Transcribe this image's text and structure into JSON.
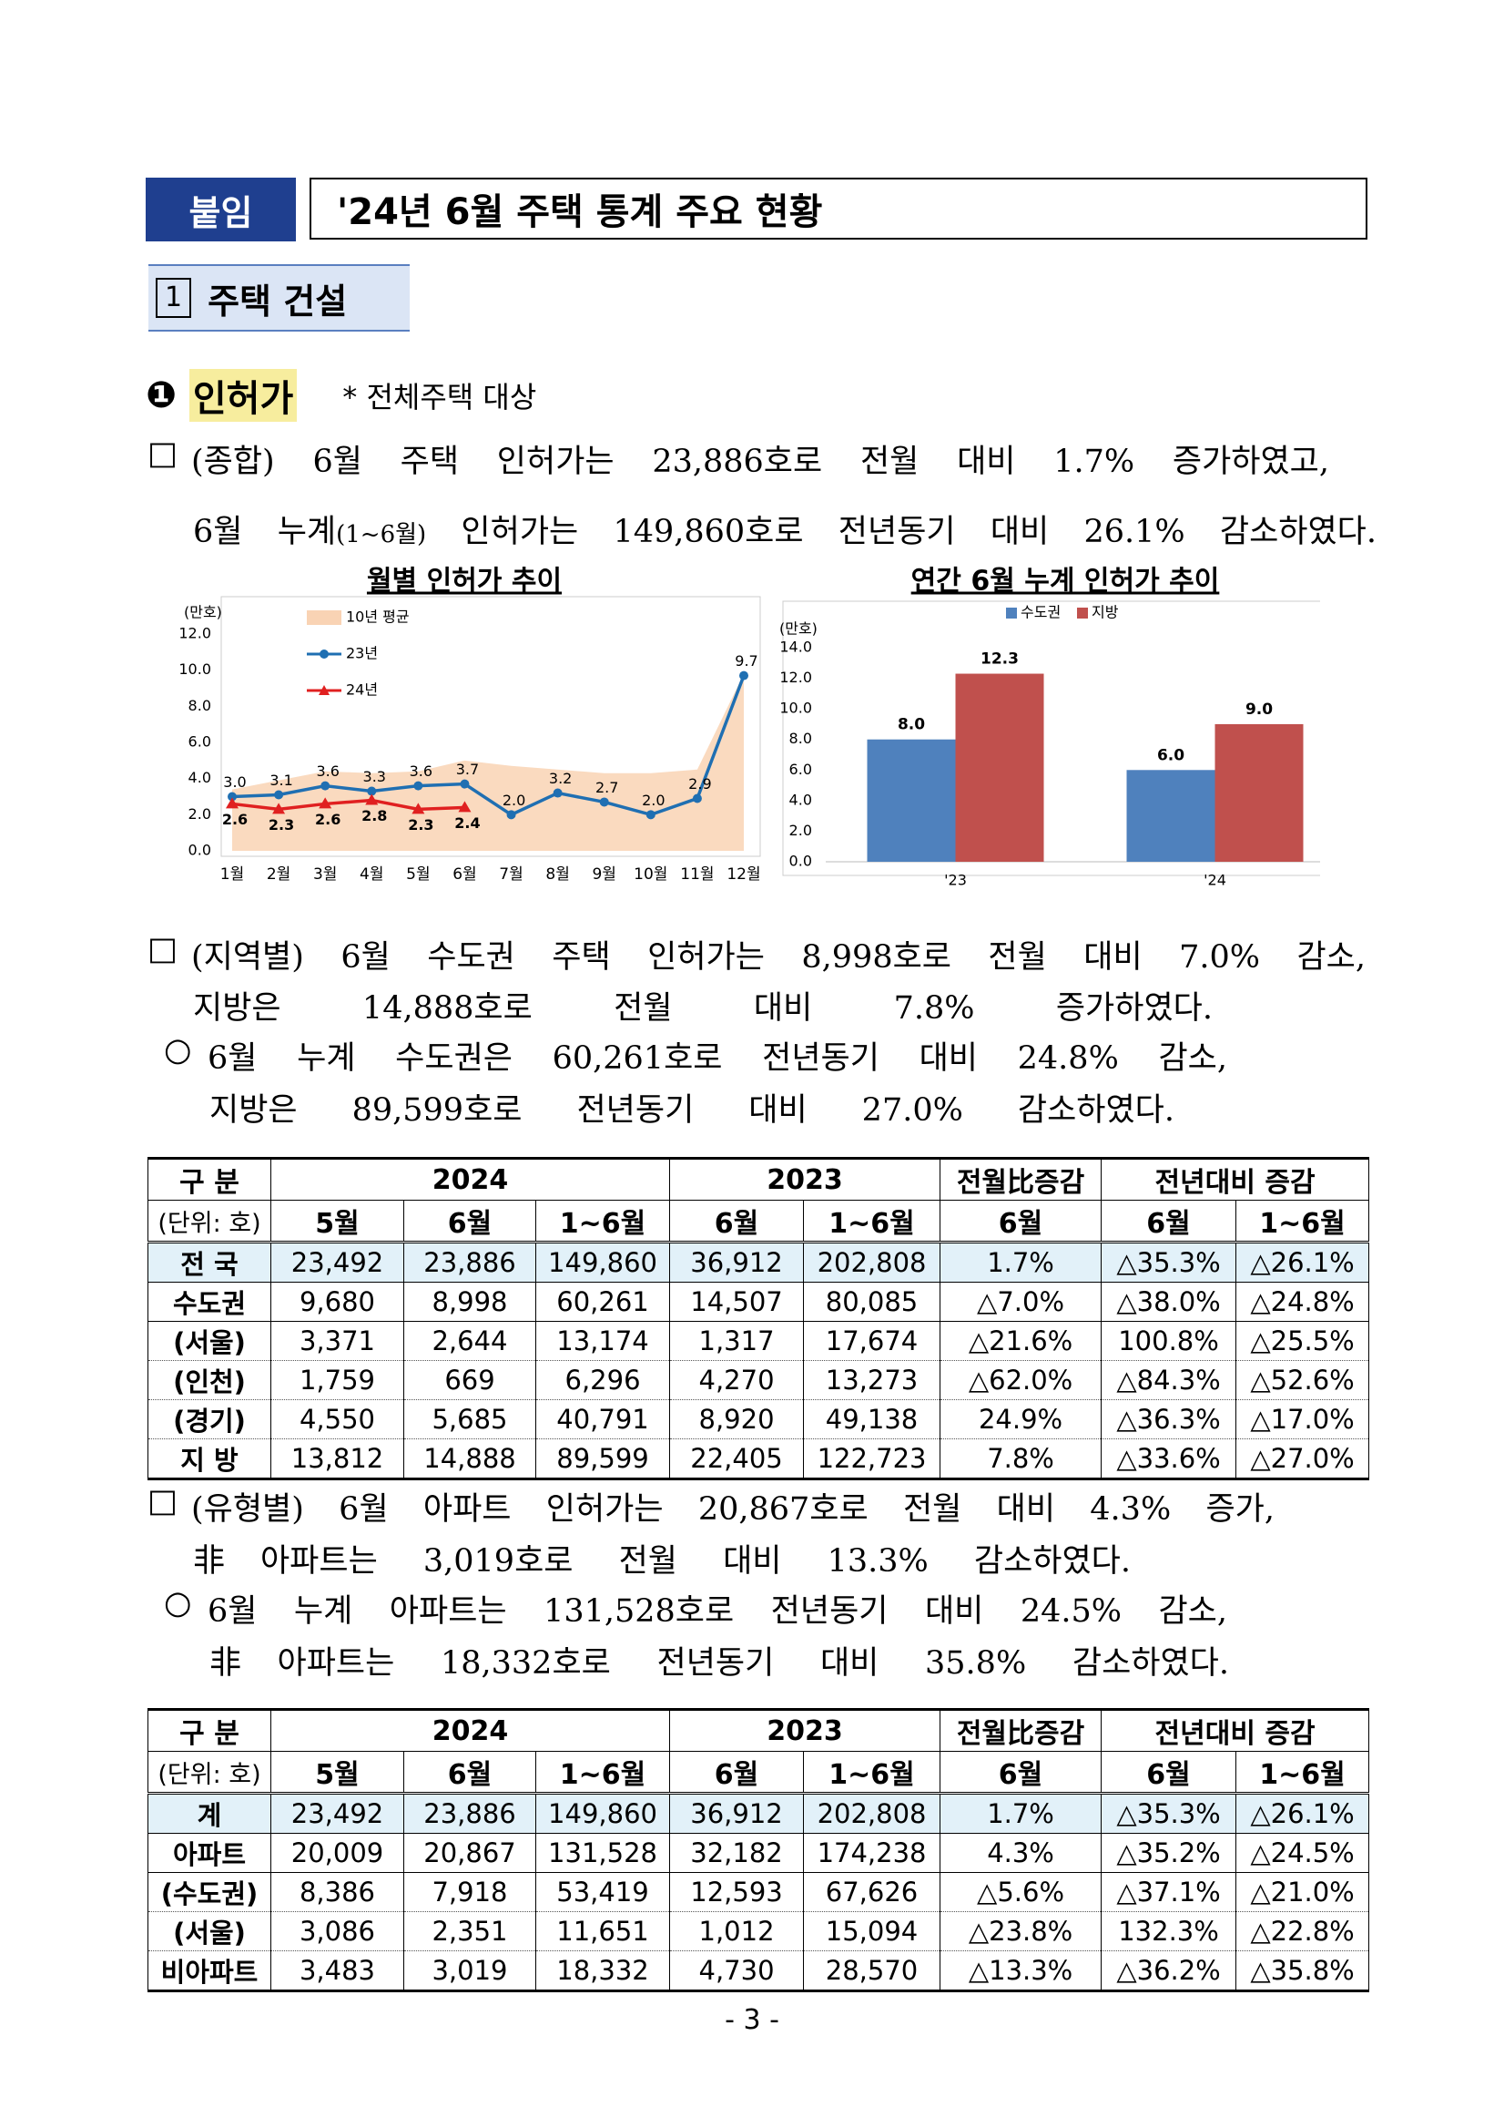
{
  "header": {
    "badge": "붙임",
    "title": "'24년 6월 주택 통계 주요 현황"
  },
  "section": {
    "number": "1",
    "title": "주택 건설"
  },
  "subsection": {
    "marker": "❶",
    "title": "인허가",
    "note": "* 전체주택 대상"
  },
  "paragraphs": [
    {
      "marker": "□",
      "lines": [
        [
          "(종합) 6월 주택 인허가는 23,886호로 전월 대비 1.7% 증가하였고,"
        ],
        [
          "6월 누계",
          "(1~6월)",
          " 인허가는 149,860호로 전년동기 대비 26.1% 감소하였다."
        ]
      ]
    },
    {
      "marker": "□",
      "lines": [
        [
          "(지역별) 6월 수도권 주택 인허가는 8,998호로 전월 대비 7.0% 감소,"
        ],
        [
          "지방은 14,888호로 전월 대비 7.8% 증가하였다."
        ]
      ]
    },
    {
      "marker": "○",
      "lines": [
        [
          "6월 누계 수도권은 60,261호로 전년동기 대비 24.8% 감소,"
        ],
        [
          "지방은 89,599호로 전년동기 대비 27.0% 감소하였다."
        ]
      ]
    },
    {
      "marker": "□",
      "lines": [
        [
          "(유형별) 6월 아파트 인허가는 20,867호로 전월 대비 4.3% 증가,"
        ],
        [
          "非아파트는 3,019호로 전월 대비 13.3% 감소하였다."
        ]
      ]
    },
    {
      "marker": "○",
      "lines": [
        [
          "6월 누계 아파트는 131,528호로 전년동기 대비 24.5% 감소,"
        ],
        [
          "非아파트는 18,332호로 전년동기 대비 35.8% 감소하였다."
        ]
      ]
    }
  ],
  "chart_data": [
    {
      "type": "line",
      "title": "월별 인허가 추이",
      "unit": "(만호)",
      "categories": [
        "1월",
        "2월",
        "3월",
        "4월",
        "5월",
        "6월",
        "7월",
        "8월",
        "9월",
        "10월",
        "11월",
        "12월"
      ],
      "ylim": [
        0,
        12
      ],
      "yticks": [
        {
          "value": 0,
          "label": "0.0"
        },
        {
          "value": 2,
          "label": "2.0"
        },
        {
          "value": 4,
          "label": "4.0"
        },
        {
          "value": 6,
          "label": "6.0"
        },
        {
          "value": 8,
          "label": "8.0"
        },
        {
          "value": 10,
          "label": "10.0"
        },
        {
          "value": 12,
          "label": "12.0"
        }
      ],
      "series": [
        {
          "name": "10년 평균",
          "color": "#f9d3b4",
          "area": true,
          "values": [
            3.4,
            3.9,
            4.4,
            4.3,
            4.4,
            5.0,
            4.7,
            4.5,
            4.3,
            4.3,
            4.5,
            9.8
          ]
        },
        {
          "name": "23년",
          "color": "#1f6fb2",
          "marker": "circle",
          "values": [
            3.0,
            3.1,
            3.6,
            3.3,
            3.6,
            3.7,
            2.0,
            3.2,
            2.7,
            2.0,
            2.9,
            9.7
          ],
          "value_labels": [
            "3.0",
            "3.1",
            "3.6",
            "3.3",
            "3.6",
            "3.7",
            "2.0",
            "3.2",
            "2.7",
            "2.0",
            "2.9",
            "9.7"
          ]
        },
        {
          "name": "24년",
          "color": "#e02020",
          "marker": "triangle",
          "values": [
            2.6,
            2.3,
            2.6,
            2.8,
            2.3,
            2.4,
            null,
            null,
            null,
            null,
            null,
            null
          ],
          "value_labels": [
            "2.6",
            "2.3",
            "2.6",
            "2.8",
            "2.3",
            "2.4",
            null,
            null,
            null,
            null,
            null,
            null
          ]
        }
      ]
    },
    {
      "type": "bar",
      "title": "연간 6월 누계 인허가 추이",
      "unit": "(만호)",
      "categories": [
        "'23",
        "'24"
      ],
      "ylim": [
        0,
        14
      ],
      "yticks": [
        {
          "value": 0,
          "label": "0.0"
        },
        {
          "value": 2,
          "label": "2.0"
        },
        {
          "value": 4,
          "label": "4.0"
        },
        {
          "value": 6,
          "label": "6.0"
        },
        {
          "value": 8,
          "label": "8.0"
        },
        {
          "value": 10,
          "label": "10.0"
        },
        {
          "value": 12,
          "label": "12.0"
        },
        {
          "value": 14,
          "label": "14.0"
        }
      ],
      "series": [
        {
          "name": "수도권",
          "color": "#4f81bd",
          "values": [
            8.0,
            6.0
          ],
          "value_labels": [
            "8.0",
            "6.0"
          ]
        },
        {
          "name": "지방",
          "color": "#c0504d",
          "values": [
            12.3,
            9.0
          ],
          "value_labels": [
            "12.3",
            "9.0"
          ]
        }
      ]
    }
  ],
  "tables": [
    {
      "header": [
        [
          "구 분",
          "2024",
          "2023",
          "전월比증감",
          "전년대비 증감"
        ],
        [
          "(단위: 호)",
          "5월",
          "6월",
          "1~6월",
          "6월",
          "1~6월",
          "6월",
          "6월",
          "1~6월"
        ]
      ],
      "rows": [
        [
          "전 국",
          "23,492",
          "23,886",
          "149,860",
          "36,912",
          "202,808",
          "1.7%",
          "△35.3%",
          "△26.1%"
        ],
        [
          "수도권",
          "9,680",
          "8,998",
          "60,261",
          "14,507",
          "80,085",
          "△7.0%",
          "△38.0%",
          "△24.8%"
        ],
        [
          "(서울)",
          "3,371",
          "2,644",
          "13,174",
          "1,317",
          "17,674",
          "△21.6%",
          "100.8%",
          "△25.5%"
        ],
        [
          "(인천)",
          "1,759",
          "669",
          "6,296",
          "4,270",
          "13,273",
          "△62.0%",
          "△84.3%",
          "△52.6%"
        ],
        [
          "(경기)",
          "4,550",
          "5,685",
          "40,791",
          "8,920",
          "49,138",
          "24.9%",
          "△36.3%",
          "△17.0%"
        ],
        [
          "지 방",
          "13,812",
          "14,888",
          "89,599",
          "22,405",
          "122,723",
          "7.8%",
          "△33.6%",
          "△27.0%"
        ]
      ]
    },
    {
      "header": [
        [
          "구 분",
          "2024",
          "2023",
          "전월比증감",
          "전년대비 증감"
        ],
        [
          "(단위: 호)",
          "5월",
          "6월",
          "1~6월",
          "6월",
          "1~6월",
          "6월",
          "6월",
          "1~6월"
        ]
      ],
      "rows": [
        [
          "계",
          "23,492",
          "23,886",
          "149,860",
          "36,912",
          "202,808",
          "1.7%",
          "△35.3%",
          "△26.1%"
        ],
        [
          "아파트",
          "20,009",
          "20,867",
          "131,528",
          "32,182",
          "174,238",
          "4.3%",
          "△35.2%",
          "△24.5%"
        ],
        [
          "(수도권)",
          "8,386",
          "7,918",
          "53,419",
          "12,593",
          "67,626",
          "△5.6%",
          "△37.1%",
          "△21.0%"
        ],
        [
          "(서울)",
          "3,086",
          "2,351",
          "11,651",
          "1,012",
          "15,094",
          "△23.8%",
          "132.3%",
          "△22.8%"
        ],
        [
          "비아파트",
          "3,483",
          "3,019",
          "18,332",
          "4,730",
          "28,570",
          "△13.3%",
          "△36.2%",
          "△35.8%"
        ]
      ]
    }
  ],
  "footer": {
    "page": "- 3 -"
  }
}
